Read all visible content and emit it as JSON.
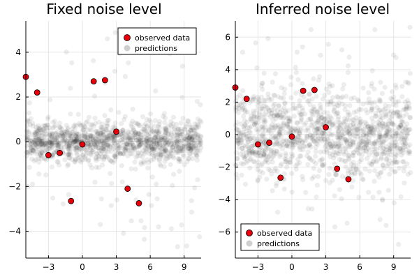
{
  "chart_data": [
    {
      "type": "scatter",
      "title": "Fixed noise level",
      "xlabel": "",
      "ylabel": "",
      "xlim": [
        -5,
        10.5
      ],
      "ylim": [
        -5.2,
        5.4
      ],
      "xticks": [
        -3,
        0,
        3,
        6,
        9
      ],
      "yticks": [
        -4,
        -2,
        0,
        2,
        4
      ],
      "xtick_labels": [
        "−3",
        "0",
        "3",
        "6",
        "9"
      ],
      "ytick_labels": [
        "−4",
        "−2",
        "0",
        "2",
        "4"
      ],
      "grid": true,
      "legend_position": "top-right",
      "legend": [
        "observed data",
        "predictions"
      ],
      "series": [
        {
          "name": "observed data",
          "color": "#e8000b",
          "points": [
            [
              -5.0,
              2.9
            ],
            [
              -4.0,
              2.2
            ],
            [
              -3.0,
              -0.6
            ],
            [
              -2.0,
              -0.5
            ],
            [
              0.0,
              -0.12
            ],
            [
              1.0,
              2.7
            ],
            [
              2.0,
              2.75
            ],
            [
              3.0,
              0.45
            ],
            [
              4.0,
              -2.1
            ],
            [
              5.0,
              -2.75
            ],
            [
              -1.0,
              -2.65
            ]
          ]
        },
        {
          "name": "predictions",
          "color": "#000000",
          "noise_sd": 0.45,
          "outlier_range": [
            -4.9,
            4.9
          ]
        }
      ]
    },
    {
      "type": "scatter",
      "title": "Inferred noise level",
      "xlabel": "",
      "ylabel": "",
      "xlim": [
        -5,
        10.5
      ],
      "ylim": [
        -7.6,
        7.0
      ],
      "xticks": [
        -3,
        0,
        3,
        6,
        9
      ],
      "yticks": [
        -6,
        -4,
        -2,
        0,
        2,
        4,
        6
      ],
      "xtick_labels": [
        "−3",
        "0",
        "3",
        "6",
        "9"
      ],
      "ytick_labels": [
        "−6",
        "−4",
        "−2",
        "0",
        "2",
        "4",
        "6"
      ],
      "grid": true,
      "legend_position": "bottom-left",
      "legend": [
        "observed data",
        "predictions"
      ],
      "series": [
        {
          "name": "observed data",
          "color": "#e8000b",
          "points": [
            [
              -5.0,
              2.9
            ],
            [
              -4.0,
              2.2
            ],
            [
              -3.0,
              -0.6
            ],
            [
              -2.0,
              -0.5
            ],
            [
              0.0,
              -0.12
            ],
            [
              1.0,
              2.7
            ],
            [
              2.0,
              2.75
            ],
            [
              3.0,
              0.45
            ],
            [
              4.0,
              -2.1
            ],
            [
              5.0,
              -2.75
            ],
            [
              -1.0,
              -2.65
            ]
          ]
        },
        {
          "name": "predictions",
          "color": "#000000",
          "noise_sd": 1.35,
          "outlier_range": [
            -6.8,
            6.8
          ]
        }
      ]
    }
  ]
}
